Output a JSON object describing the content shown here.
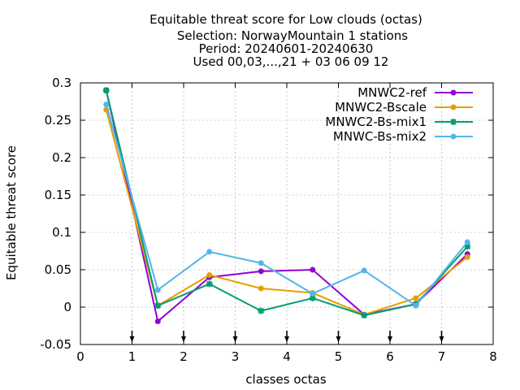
{
  "chart_data": {
    "type": "line",
    "title_lines": [
      "Equitable threat score  for Low clouds (octas)",
      "Selection: NorwayMountain      1 stations",
      "Period: 20240601-20240630",
      "Used 00,03,...,21 + 03 06 09 12"
    ],
    "xlabel": "classes octas",
    "ylabel": "Equitable threat score",
    "xlim": [
      0,
      8
    ],
    "ylim": [
      -0.05,
      0.3
    ],
    "x_ticks": [
      "0",
      "1",
      "2",
      "3",
      "4",
      "5",
      "6",
      "7",
      "8"
    ],
    "y_ticks": [
      "-0.05",
      "0",
      "0.05",
      "0.1",
      "0.15",
      "0.2",
      "0.25",
      "0.3"
    ],
    "x_tick_values": [
      0,
      1,
      2,
      3,
      4,
      5,
      6,
      7,
      8
    ],
    "y_tick_values": [
      -0.05,
      0,
      0.05,
      0.1,
      0.15,
      0.2,
      0.25,
      0.3
    ],
    "arrow_markers_x": [
      1,
      2,
      3,
      4,
      5,
      6,
      7
    ],
    "x": [
      0.5,
      1.5,
      2.5,
      3.5,
      4.5,
      5.5,
      6.5,
      7.5
    ],
    "legend_position": "top-right",
    "grid": true,
    "series": [
      {
        "name": "MNWC2-ref",
        "color": "#9400d3",
        "marker": "circle",
        "values": [
          0.29,
          -0.019,
          0.04,
          0.048,
          0.05,
          -0.01,
          0.004,
          0.071
        ]
      },
      {
        "name": "MNWC2-Bscale",
        "color": "#e69f00",
        "marker": "circle",
        "values": [
          0.264,
          0.002,
          0.043,
          0.025,
          0.019,
          -0.01,
          0.012,
          0.067
        ]
      },
      {
        "name": "MNWC2-Bs-mix1",
        "color": "#009e73",
        "marker": "star",
        "values": [
          0.29,
          0.002,
          0.031,
          -0.005,
          0.012,
          -0.011,
          0.004,
          0.081
        ]
      },
      {
        "name": "MNWC-Bs-mix2",
        "color": "#56b4e9",
        "marker": "circle",
        "values": [
          0.271,
          0.023,
          0.074,
          0.059,
          0.018,
          0.049,
          0.002,
          0.087
        ]
      }
    ]
  }
}
